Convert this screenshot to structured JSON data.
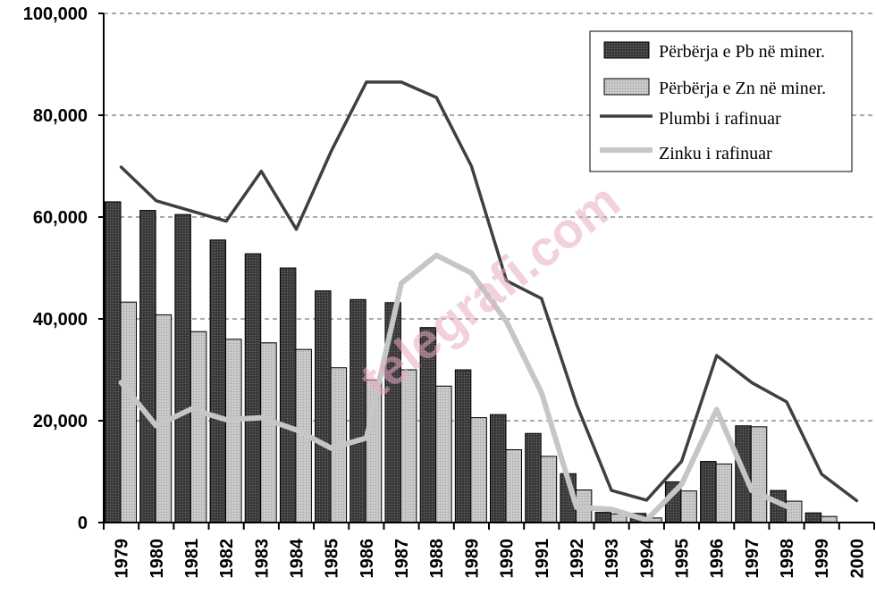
{
  "chart_data": {
    "type": "bar",
    "categories": [
      "1979",
      "1980",
      "1981",
      "1982",
      "1983",
      "1984",
      "1985",
      "1986",
      "1987",
      "1988",
      "1989",
      "1990",
      "1991",
      "1992",
      "1993",
      "1994",
      "1995",
      "1996",
      "1997",
      "1998",
      "1999",
      "2000"
    ],
    "ylim": [
      0,
      100000
    ],
    "yticks": [
      0,
      20000,
      40000,
      60000,
      80000,
      100000
    ],
    "ytick_labels": [
      "0",
      "20,000",
      "40,000",
      "60,000",
      "80,000",
      "100,000"
    ],
    "grid": "horizontal dashed",
    "legend_position": "top-right",
    "series": [
      {
        "name": "Përbërja e Pb në miner.",
        "kind": "bar",
        "color": "#3a3a3a",
        "values": [
          63000,
          61300,
          60500,
          55500,
          52800,
          50000,
          45500,
          43800,
          43200,
          38300,
          30000,
          21200,
          17500,
          9600,
          2000,
          1800,
          8000,
          12000,
          19000,
          6300,
          1900,
          null
        ]
      },
      {
        "name": "Përbërja e Zn në miner.",
        "kind": "bar",
        "color": "#c9c9c9",
        "values": [
          43300,
          40800,
          37500,
          36000,
          35300,
          34000,
          30400,
          28000,
          30000,
          26800,
          20600,
          14300,
          13000,
          6400,
          1700,
          900,
          6200,
          11500,
          18800,
          4200,
          1200,
          null
        ]
      },
      {
        "name": "Plumbi i rafinuar",
        "kind": "line",
        "color": "#3f3f3f",
        "values": [
          69800,
          63200,
          61200,
          59200,
          69000,
          57600,
          73000,
          86500,
          86500,
          83500,
          70000,
          47500,
          44000,
          23200,
          6300,
          4400,
          12000,
          32800,
          27500,
          23700,
          9500,
          4300
        ]
      },
      {
        "name": "Zinku i rafinuar",
        "kind": "line",
        "color": "#c6c6c6",
        "values": [
          27500,
          19000,
          22300,
          20200,
          20600,
          18200,
          14600,
          16600,
          47000,
          52500,
          49000,
          39500,
          25500,
          3000,
          2600,
          500,
          7500,
          22200,
          6300,
          3200,
          null,
          null
        ]
      }
    ]
  },
  "watermark": "telegrafi.com"
}
